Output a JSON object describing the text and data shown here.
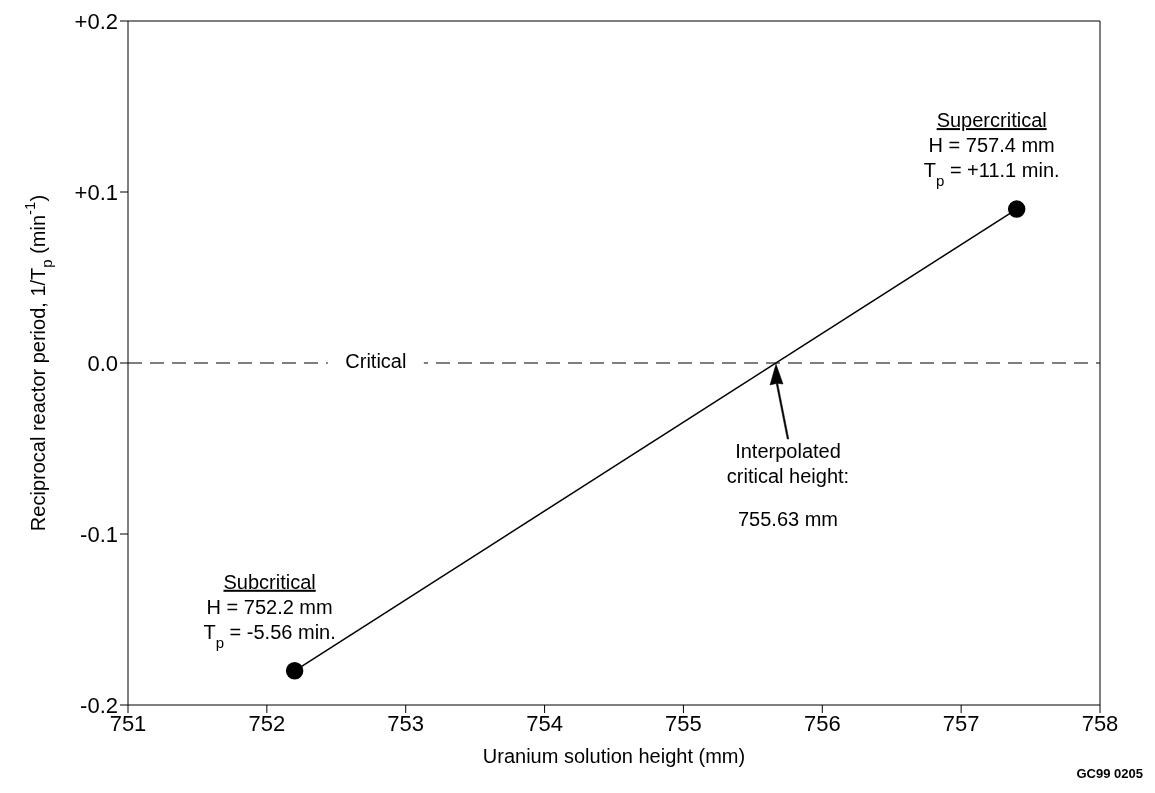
{
  "chart_data": {
    "type": "line",
    "xlabel": "Uranium solution height (mm)",
    "ylabel": "Reciprocal reactor period, 1/T$_{p}$ (min$^{-1}$)",
    "series": [
      {
        "x": [
          752.2,
          757.4
        ],
        "values": [
          -0.18,
          0.09
        ],
        "color": "#000000"
      }
    ],
    "marker": "circle",
    "line_style": "solid",
    "legend": false,
    "grid": false,
    "xlim": [
      751,
      758
    ],
    "xticks": [
      751,
      752,
      753,
      754,
      755,
      756,
      757,
      758
    ],
    "ylim": [
      -0.2,
      0.2
    ],
    "yticks": [
      {
        "value": -0.2,
        "label": "-0.2"
      },
      {
        "value": -0.1,
        "label": "-0.1"
      },
      {
        "value": 0,
        "label": "0.0"
      },
      {
        "value": 0.1,
        "label": "+0.1"
      },
      {
        "value": 0.2,
        "label": "+0.2"
      }
    ],
    "ref_lines": [
      {
        "axis": "y",
        "value": 0,
        "label": "Critical",
        "line_style": "dashed",
        "color": "#000000"
      }
    ],
    "annotations": [
      {
        "text": "Supercritical\nH = 757.4 mm\nT$_{p}$ = +11.1 min.",
        "x": 757.4,
        "y": 0.09
      },
      {
        "text": "Subcritical\nH = 752.2 mm\nT$_{p}$ = -5.56 min.",
        "x": 752.2,
        "y": -0.18
      },
      "Interpolated\ncritical height:\n755.63 mm",
      "GC99 0205"
    ]
  }
}
